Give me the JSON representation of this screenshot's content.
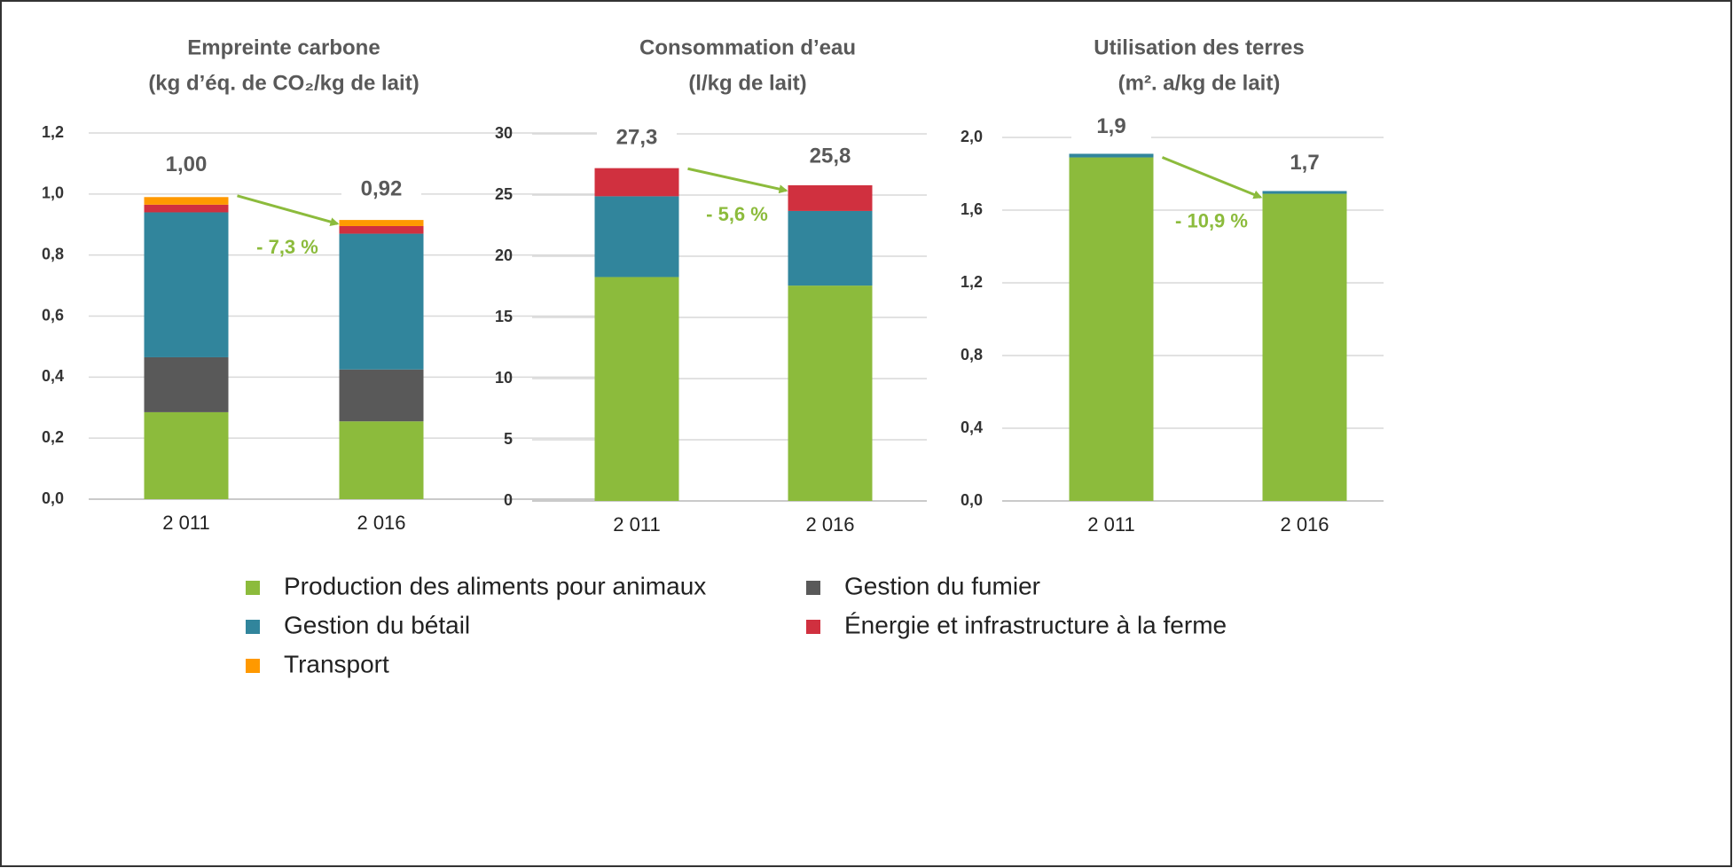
{
  "chart_data": [
    {
      "type": "stacked_bar",
      "title": "Empreinte carbone",
      "subtitle": "(kg d’éq. de CO₂/kg de lait)",
      "categories": [
        "2 011",
        "2 016"
      ],
      "series": [
        {
          "values": [
            0.285,
            0.255
          ]
        },
        {
          "values": [
            0.18,
            0.17
          ]
        },
        {
          "values": [
            0.475,
            0.445
          ]
        },
        {
          "values": [
            0.025,
            0.025
          ]
        },
        {
          "values": [
            0.025,
            0.02
          ]
        }
      ],
      "totals": [
        1,
        0.92
      ],
      "total_labels": [
        "1,00",
        "0,92"
      ],
      "change": "- 7,3 %",
      "ylim": [
        0,
        1.2
      ],
      "yticks": [
        {
          "value": 0,
          "label": "0,0"
        },
        {
          "value": 0.2,
          "label": "0,2"
        },
        {
          "value": 0.4,
          "label": "0,4"
        },
        {
          "value": 0.6,
          "label": "0,6"
        },
        {
          "value": 0.8,
          "label": "0,8"
        },
        {
          "value": 1,
          "label": "1,0"
        },
        {
          "value": 1.2,
          "label": "1,2"
        }
      ],
      "grid": true
    },
    {
      "type": "stacked_bar",
      "title": "Consommation d’eau",
      "subtitle": "(l/kg de lait)",
      "categories": [
        "2 011",
        "2 016"
      ],
      "series": [
        {
          "values": [
            18.3,
            17.6
          ]
        },
        {
          "values": [
            null,
            null
          ]
        },
        {
          "values": [
            6.6,
            6.1
          ]
        },
        {
          "values": [
            2.3,
            2.1
          ]
        },
        {
          "values": [
            null,
            null
          ]
        }
      ],
      "totals": [
        27.3,
        25.8
      ],
      "total_labels": [
        "27,3",
        "25,8"
      ],
      "change": "- 5,6 %",
      "ylim": [
        0,
        30
      ],
      "yticks": [
        0,
        5,
        10,
        15,
        20,
        25,
        30
      ],
      "grid": true
    },
    {
      "type": "stacked_bar",
      "title": "Utilisation des terres",
      "subtitle": "(m². a/kg de lait)",
      "categories": [
        "2 011",
        "2 016"
      ],
      "series": [
        {
          "values": [
            1.89,
            1.69
          ]
        },
        {
          "values": [
            null,
            null
          ]
        },
        {
          "values": [
            0.02,
            0.015
          ]
        },
        {
          "values": [
            null,
            null
          ]
        },
        {
          "values": [
            null,
            null
          ]
        }
      ],
      "totals": [
        1.9,
        1.7
      ],
      "total_labels": [
        "1,9",
        "1,7"
      ],
      "change": "- 10,9 %",
      "ylim": [
        0,
        2
      ],
      "yticks": [
        {
          "value": 0,
          "label": "0,0"
        },
        {
          "value": 0.4,
          "label": "0,4"
        },
        {
          "value": 0.8,
          "label": "0,8"
        },
        {
          "value": 1.2,
          "label": "1,2"
        },
        {
          "value": 1.6,
          "label": "1,6"
        },
        {
          "value": 2,
          "label": "2,0"
        }
      ],
      "grid": true
    }
  ],
  "legend": [
    {
      "name": "Production des aliments pour animaux",
      "color": "#8cbb3c"
    },
    {
      "name": "Gestion du fumier",
      "color": "#595959"
    },
    {
      "name": "Gestion du bétail",
      "color": "#31859c"
    },
    {
      "name": "Énergie et infrastructure à la ferme",
      "color": "#d0303f"
    },
    {
      "name": "Transport",
      "color": "#ff9900"
    }
  ]
}
